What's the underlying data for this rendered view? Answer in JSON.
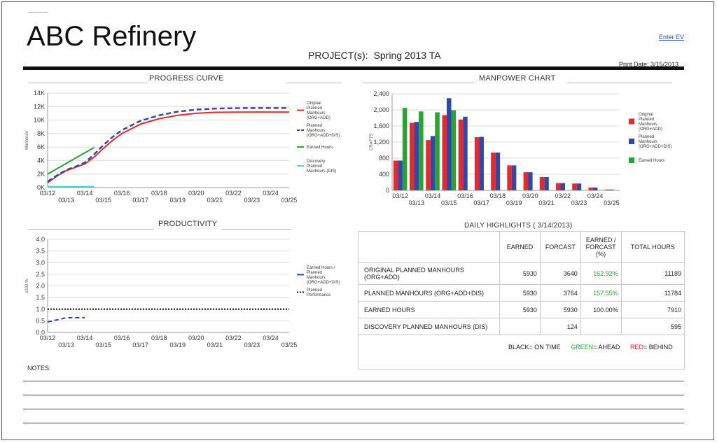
{
  "title": "ABC Refinery",
  "enter_ev": "Enter EV",
  "project": {
    "label": "PROJECT(s):",
    "value": "Spring 2013 TA"
  },
  "print_date": "Print Date: 3/15/2013",
  "colors": {
    "red": "#e8282b",
    "blue": "#3048a8",
    "green": "#2aa334",
    "cyan": "#5ecbd2"
  },
  "chart_data": [
    {
      "type": "line",
      "title": "PROGRESS CURVE",
      "ylabel": "Manhours",
      "x_ticks_top": [
        "03/12",
        "03/14",
        "03/16",
        "03/18",
        "03/20",
        "03/22",
        "03/24"
      ],
      "x_ticks_bottom": [
        "03/13",
        "03/15",
        "03/17",
        "03/19",
        "03/21",
        "03/23",
        "03/25"
      ],
      "y_ticks": [
        "0K",
        "2K",
        "4K",
        "6K",
        "8K",
        "10K",
        "12K",
        "14K"
      ],
      "ylim": [
        0,
        14000
      ],
      "x": [
        0,
        0.5,
        1,
        1.5,
        2,
        2.5,
        3,
        3.5,
        4,
        5,
        6,
        7,
        8,
        9,
        10,
        11,
        12,
        13
      ],
      "series": [
        {
          "name": "Original Planned Manhours (ORG+ADD)",
          "style": "solid",
          "color": "#e8282b",
          "values": [
            700,
            1700,
            2500,
            3000,
            3500,
            4500,
            5800,
            7000,
            8000,
            9400,
            10200,
            10700,
            11000,
            11150,
            11180,
            11189,
            11189,
            11189
          ]
        },
        {
          "name": "Planned Manhours (ORG+ADD+DIS)",
          "style": "dashed",
          "color": "#3048a8",
          "values": [
            900,
            1800,
            2600,
            3100,
            3700,
            4900,
            6300,
            7500,
            8500,
            9900,
            10700,
            11250,
            11550,
            11700,
            11760,
            11784,
            11784,
            11784
          ]
        },
        {
          "name": "Earned Hours",
          "style": "solid",
          "color": "#2aa334",
          "x": [
            0,
            2.5
          ],
          "values": [
            2000,
            5930
          ]
        },
        {
          "name": "Discovery Planned Manhours (DIS)",
          "style": "solid",
          "color": "#5ecbd2",
          "x": [
            0,
            2.5
          ],
          "values": [
            124,
            124
          ]
        }
      ]
    },
    {
      "type": "bar",
      "title": "MANPOWER CHART",
      "ylabel": "CRAFTS",
      "x_ticks_top": [
        "03/12",
        "03/14",
        "03/16",
        "03/18",
        "03/20",
        "03/22",
        "03/24"
      ],
      "x_ticks_bottom": [
        "03/13",
        "03/15",
        "03/17",
        "03/19",
        "03/21",
        "03/23",
        "03/25"
      ],
      "y_ticks": [
        "0",
        "400",
        "800",
        "1,200",
        "1,600",
        "2,000",
        "2,400"
      ],
      "ylim": [
        0,
        2400
      ],
      "categories": [
        "03/12",
        "03/13",
        "03/14",
        "03/15",
        "03/16",
        "03/17",
        "03/18",
        "03/19",
        "03/20",
        "03/21",
        "03/22",
        "03/23",
        "03/24",
        "03/25"
      ],
      "series": [
        {
          "name": "Original Planned Manhours (ORG+ADD)",
          "color": "#e8282b",
          "values": [
            740,
            1680,
            1250,
            1870,
            1760,
            1320,
            940,
            620,
            450,
            330,
            180,
            170,
            70,
            20
          ]
        },
        {
          "name": "Planned Manhours (ORG+ADD+DIS)",
          "color": "#3048a8",
          "values": [
            740,
            1700,
            1350,
            2290,
            1830,
            1330,
            940,
            620,
            450,
            330,
            180,
            170,
            70,
            20
          ]
        },
        {
          "name": "Earned Hours",
          "color": "#2aa334",
          "values": [
            2050,
            1960,
            1940,
            1990,
            null,
            null,
            null,
            null,
            null,
            null,
            null,
            null,
            null,
            null
          ]
        }
      ]
    },
    {
      "type": "line",
      "title": "PRODUCTIVITY",
      "ylabel": "x100 %",
      "x_ticks_top": [
        "03/12",
        "03/14",
        "03/16",
        "03/18",
        "03/20",
        "03/22",
        "03/24"
      ],
      "x_ticks_bottom": [
        "03/13",
        "03/15",
        "03/17",
        "03/19",
        "03/21",
        "03/23",
        "03/25"
      ],
      "y_ticks": [
        "0.0",
        "0.5",
        "1.0",
        "1.5",
        "2.0",
        "2.5",
        "3.0",
        "3.5",
        "4.0"
      ],
      "ylim": [
        0,
        4.0
      ],
      "series": [
        {
          "name": "Earned Hours / Planned Manhours (ORG+ADD+DIS)",
          "style": "dashed",
          "color": "#3048a8",
          "x": [
            0,
            1,
            2
          ],
          "values": [
            0.45,
            0.63,
            0.63
          ]
        },
        {
          "name": "Planned Performance",
          "style": "dotted",
          "color": "#111111",
          "x": [
            0,
            13
          ],
          "values": [
            1.0,
            1.0
          ]
        }
      ]
    }
  ],
  "progress_legend": [
    [
      "Original",
      "Planned",
      "Manhours",
      "(ORG+ADD)"
    ],
    [
      "Planned",
      "Manhours",
      "(ORG+ADD+DIS)"
    ],
    [
      "Earned Hours"
    ],
    [
      "Discovery",
      "Planned",
      "Manhours (DIS)"
    ]
  ],
  "manpower_legend": [
    [
      "Original",
      "Planned",
      "Manhours",
      "(ORG+ADD)"
    ],
    [
      "Planned",
      "Manhours",
      "(ORG+ADD+DIS)"
    ],
    [
      "Earned Hours"
    ]
  ],
  "productivity_legend": [
    [
      "Earned Hours /",
      "Planned",
      "Manhours",
      "(ORG+ADD+DIS)"
    ],
    [
      "Planned",
      "Performance"
    ]
  ],
  "highlights": {
    "title": "DAILY HIGHLIGHTS ( 3/14/2013)",
    "headers": [
      "",
      "EARNED",
      "FORCAST",
      "EARNED / FORCAST (%)",
      "TOTAL HOURS"
    ],
    "rows": [
      {
        "label": "ORIGINAL PLANNED MANHOURS (ORG+ADD)",
        "earned": "5930",
        "forcast": "3640",
        "pct": "162.92%",
        "pct_status": "ahead",
        "total": "11189"
      },
      {
        "label": "PLANNED MANHOURS (ORG+ADD+DIS)",
        "earned": "5930",
        "forcast": "3764",
        "pct": "157.55%",
        "pct_status": "ahead",
        "total": "11784"
      },
      {
        "label": "EARNED HOURS",
        "earned": "5930",
        "forcast": "5930",
        "pct": "100.00%",
        "pct_status": "on-time",
        "total": "7910"
      },
      {
        "label": "DISCOVERY PLANNED MANHOURS (DIS)",
        "earned": "",
        "forcast": "124",
        "pct": "",
        "pct_status": "",
        "total": "595"
      }
    ],
    "legend": {
      "black": "BLACK",
      "black_text": "= ON TIME",
      "green": "GREEN",
      "green_text": "= AHEAD",
      "red": "RED",
      "red_text": "= BEHIND"
    }
  },
  "notes_label": "NOTES:"
}
